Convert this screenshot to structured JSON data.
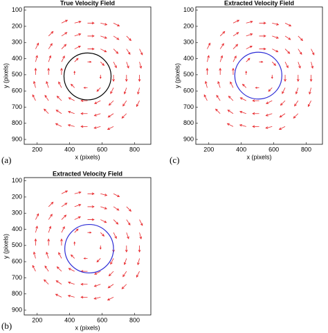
{
  "chart_data": [
    {
      "type": "quiver",
      "title": "True Velocity Field",
      "panel_label": "(a)",
      "xlabel": "x (pixels)",
      "ylabel": "y (pixels)",
      "xlim": [
        120,
        900
      ],
      "ylim": [
        80,
        930
      ],
      "y_reversed": true,
      "xticks": [
        200,
        400,
        600,
        800
      ],
      "yticks": [
        100,
        200,
        300,
        400,
        500,
        600,
        700,
        800,
        900
      ],
      "color": "#e8262a",
      "x": [
        350,
        430,
        510,
        590,
        670,
        270,
        350,
        430,
        510,
        590,
        670,
        750,
        190,
        270,
        350,
        430,
        510,
        590,
        670,
        750,
        830,
        190,
        270,
        350,
        430,
        510,
        590,
        670,
        750,
        830,
        190,
        270,
        350,
        430,
        510,
        590,
        670,
        750,
        830,
        190,
        270,
        350,
        430,
        510,
        590,
        670,
        750,
        830,
        190,
        270,
        350,
        430,
        510,
        590,
        670,
        750,
        830,
        270,
        350,
        430,
        510,
        590,
        670,
        750,
        350,
        430,
        510,
        590,
        670
      ],
      "y": [
        180,
        180,
        180,
        180,
        180,
        260,
        260,
        260,
        260,
        260,
        260,
        260,
        340,
        340,
        340,
        340,
        340,
        340,
        340,
        340,
        340,
        420,
        420,
        420,
        420,
        420,
        420,
        420,
        420,
        420,
        500,
        500,
        500,
        500,
        500,
        500,
        500,
        500,
        500,
        580,
        580,
        580,
        580,
        580,
        580,
        580,
        580,
        580,
        660,
        660,
        660,
        660,
        660,
        660,
        660,
        660,
        660,
        740,
        740,
        740,
        740,
        740,
        740,
        740,
        820,
        820,
        820,
        820,
        820
      ],
      "u": [
        36,
        39,
        40,
        39,
        36,
        28,
        33,
        38,
        40,
        38,
        33,
        28,
        18,
        22,
        28,
        36,
        40,
        36,
        28,
        22,
        18,
        10,
        13,
        18,
        22,
        22,
        22,
        18,
        13,
        10,
        0,
        0,
        0,
        0,
        0,
        0,
        0,
        0,
        0,
        -10,
        -13,
        -18,
        -22,
        -22,
        -22,
        -18,
        -13,
        -10,
        -18,
        -22,
        -28,
        -36,
        -40,
        -36,
        -28,
        -22,
        -18,
        -28,
        -33,
        -38,
        -40,
        -38,
        -33,
        -28,
        -36,
        -39,
        -40,
        -39,
        -36
      ],
      "v": [
        -18,
        -10,
        0,
        10,
        18,
        -28,
        -22,
        -13,
        0,
        13,
        22,
        28,
        -36,
        -33,
        -28,
        -18,
        0,
        18,
        28,
        33,
        36,
        -39,
        -38,
        -36,
        -22,
        0,
        22,
        36,
        38,
        39,
        -40,
        -40,
        -40,
        -22,
        0,
        22,
        40,
        40,
        40,
        -39,
        -38,
        -36,
        -22,
        0,
        22,
        36,
        38,
        39,
        -36,
        -33,
        -28,
        -18,
        0,
        18,
        28,
        33,
        36,
        -28,
        -22,
        -13,
        0,
        13,
        22,
        28,
        -18,
        -10,
        0,
        10,
        18
      ],
      "circle": {
        "cx": 510,
        "cy": 510,
        "r": 145,
        "color": "#000000"
      }
    },
    {
      "type": "quiver",
      "title": "Extracted Velocity Field",
      "panel_label": "(c)",
      "xlabel": "x (pixels)",
      "ylabel": "y (pixels)",
      "xlim": [
        120,
        900
      ],
      "ylim": [
        80,
        930
      ],
      "y_reversed": true,
      "xticks": [
        200,
        400,
        600,
        800
      ],
      "yticks": [
        100,
        200,
        300,
        400,
        500,
        600,
        700,
        800,
        900
      ],
      "color": "#e8262a",
      "x": [
        350,
        430,
        510,
        590,
        670,
        270,
        350,
        430,
        510,
        590,
        670,
        750,
        190,
        270,
        350,
        430,
        510,
        590,
        670,
        750,
        830,
        190,
        270,
        350,
        430,
        510,
        590,
        670,
        750,
        830,
        190,
        270,
        350,
        430,
        510,
        590,
        670,
        750,
        830,
        190,
        270,
        350,
        430,
        510,
        590,
        670,
        750,
        830,
        190,
        270,
        350,
        430,
        510,
        590,
        670,
        750,
        830,
        270,
        350,
        430,
        510,
        590,
        670,
        750,
        350,
        430,
        510,
        590,
        670
      ],
      "y": [
        180,
        180,
        180,
        180,
        180,
        260,
        260,
        260,
        260,
        260,
        260,
        260,
        340,
        340,
        340,
        340,
        340,
        340,
        340,
        340,
        340,
        420,
        420,
        420,
        420,
        420,
        420,
        420,
        420,
        420,
        500,
        500,
        500,
        500,
        500,
        500,
        500,
        500,
        500,
        580,
        580,
        580,
        580,
        580,
        580,
        580,
        580,
        580,
        660,
        660,
        660,
        660,
        660,
        660,
        660,
        660,
        660,
        740,
        740,
        740,
        740,
        740,
        740,
        740,
        820,
        820,
        820,
        820,
        820
      ],
      "u": [
        36,
        39,
        40,
        39,
        36,
        28,
        33,
        38,
        40,
        38,
        33,
        28,
        18,
        22,
        28,
        36,
        40,
        36,
        28,
        22,
        18,
        10,
        13,
        18,
        22,
        22,
        22,
        18,
        13,
        10,
        0,
        0,
        0,
        0,
        0,
        0,
        0,
        0,
        0,
        -10,
        -13,
        -18,
        -22,
        -22,
        -22,
        -18,
        -13,
        -10,
        -18,
        -22,
        -28,
        -36,
        -40,
        -36,
        -28,
        -22,
        -18,
        -28,
        -33,
        -38,
        -40,
        -38,
        -33,
        -28,
        -36,
        -39,
        -40,
        -39,
        -36
      ],
      "v": [
        -18,
        -10,
        0,
        10,
        18,
        -28,
        -22,
        -13,
        0,
        13,
        22,
        28,
        -36,
        -33,
        -28,
        -18,
        0,
        18,
        28,
        33,
        36,
        -39,
        -38,
        -36,
        -22,
        0,
        22,
        36,
        38,
        39,
        -40,
        -40,
        -40,
        -22,
        0,
        22,
        40,
        40,
        40,
        -39,
        -38,
        -36,
        -22,
        0,
        22,
        36,
        38,
        39,
        -36,
        -33,
        -28,
        -18,
        0,
        18,
        28,
        33,
        36,
        -28,
        -22,
        -13,
        0,
        13,
        22,
        28,
        -18,
        -10,
        0,
        10,
        18
      ],
      "circle": {
        "cx": 505,
        "cy": 505,
        "r": 145,
        "color": "#2b2bd6"
      }
    },
    {
      "type": "quiver",
      "title": "Extracted Velocity Field",
      "panel_label": "(b)",
      "xlabel": "x (pixels)",
      "ylabel": "y (pixels)",
      "xlim": [
        120,
        900
      ],
      "ylim": [
        80,
        930
      ],
      "y_reversed": true,
      "xticks": [
        200,
        400,
        600,
        800
      ],
      "yticks": [
        100,
        200,
        300,
        400,
        500,
        600,
        700,
        800,
        900
      ],
      "color": "#e8262a",
      "x": [
        350,
        430,
        510,
        590,
        670,
        270,
        350,
        430,
        510,
        590,
        670,
        750,
        190,
        270,
        350,
        430,
        510,
        590,
        670,
        750,
        830,
        190,
        270,
        350,
        430,
        510,
        590,
        670,
        750,
        830,
        190,
        270,
        350,
        430,
        510,
        590,
        670,
        750,
        830,
        190,
        270,
        350,
        430,
        510,
        590,
        670,
        750,
        830,
        190,
        270,
        350,
        430,
        510,
        590,
        670,
        750,
        830,
        270,
        350,
        430,
        510,
        590,
        670,
        750,
        350,
        430,
        510,
        590,
        670
      ],
      "y": [
        180,
        180,
        180,
        180,
        180,
        260,
        260,
        260,
        260,
        260,
        260,
        260,
        340,
        340,
        340,
        340,
        340,
        340,
        340,
        340,
        340,
        420,
        420,
        420,
        420,
        420,
        420,
        420,
        420,
        420,
        500,
        500,
        500,
        500,
        500,
        500,
        500,
        500,
        500,
        580,
        580,
        580,
        580,
        580,
        580,
        580,
        580,
        580,
        660,
        660,
        660,
        660,
        660,
        660,
        660,
        660,
        660,
        740,
        740,
        740,
        740,
        740,
        740,
        740,
        820,
        820,
        820,
        820,
        820
      ],
      "u": [
        36,
        39,
        40,
        39,
        36,
        28,
        33,
        38,
        40,
        38,
        33,
        28,
        18,
        22,
        28,
        36,
        40,
        36,
        28,
        22,
        18,
        10,
        13,
        18,
        22,
        22,
        22,
        18,
        13,
        10,
        0,
        0,
        0,
        0,
        0,
        0,
        0,
        0,
        0,
        -10,
        -13,
        -18,
        -22,
        -22,
        -22,
        -18,
        -13,
        -10,
        -18,
        -22,
        -28,
        -36,
        -40,
        -36,
        -28,
        -22,
        -18,
        -28,
        -33,
        -38,
        -40,
        -38,
        -33,
        -28,
        -36,
        -39,
        -40,
        -39,
        -36
      ],
      "v": [
        -18,
        -10,
        0,
        10,
        18,
        -28,
        -22,
        -13,
        0,
        13,
        22,
        28,
        -36,
        -33,
        -28,
        -18,
        0,
        18,
        28,
        33,
        36,
        -39,
        -38,
        -36,
        -22,
        0,
        22,
        36,
        38,
        39,
        -40,
        -40,
        -40,
        -22,
        0,
        22,
        40,
        40,
        40,
        -39,
        -38,
        -36,
        -22,
        0,
        22,
        36,
        38,
        39,
        -36,
        -33,
        -28,
        -18,
        0,
        18,
        28,
        33,
        36,
        -28,
        -22,
        -13,
        0,
        13,
        22,
        28,
        -18,
        -10,
        0,
        10,
        18
      ],
      "circle": {
        "cx": 520,
        "cy": 520,
        "r": 150,
        "color": "#2b2bd6"
      }
    }
  ]
}
